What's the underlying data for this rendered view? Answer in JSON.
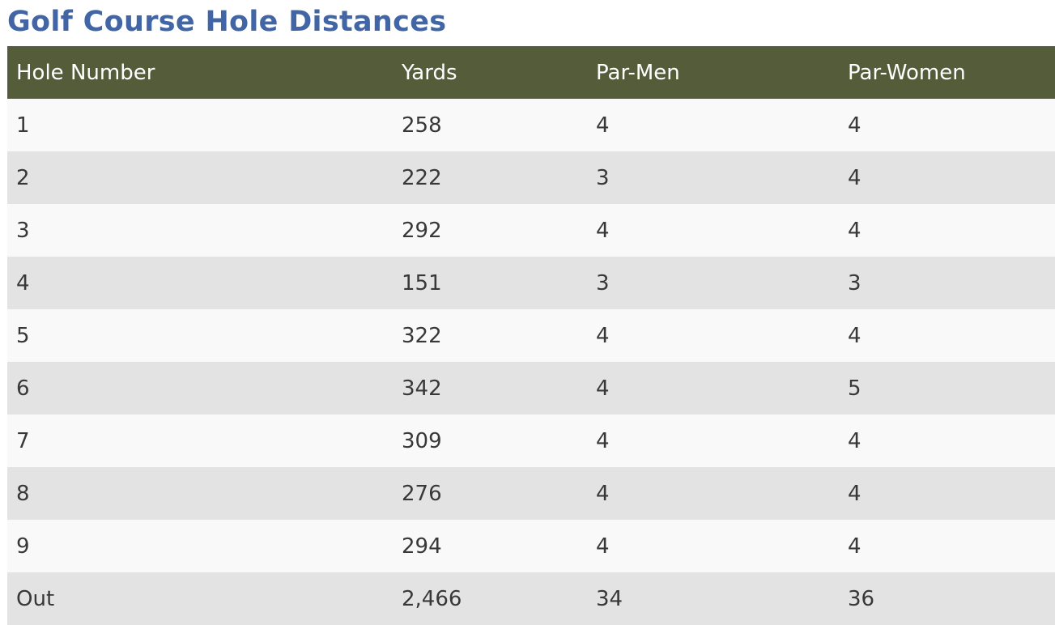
{
  "page": {
    "title": "Golf Course Hole Distances"
  },
  "colors": {
    "title": "#4266a5",
    "header_background": "#545c3a",
    "header_text": "#ffffff",
    "row_light": "#f9f9f9",
    "row_dark": "#e3e3e3",
    "cell_text": "#383838"
  },
  "table": {
    "headers": [
      "Hole Number",
      "Yards",
      "Par-Men",
      "Par-Women"
    ],
    "rows": [
      [
        "1",
        "258",
        "4",
        "4"
      ],
      [
        "2",
        "222",
        "3",
        "4"
      ],
      [
        "3",
        "292",
        "4",
        "4"
      ],
      [
        "4",
        "151",
        "3",
        "3"
      ],
      [
        "5",
        "322",
        "4",
        "4"
      ],
      [
        "6",
        "342",
        "4",
        "5"
      ],
      [
        "7",
        "309",
        "4",
        "4"
      ],
      [
        "8",
        "276",
        "4",
        "4"
      ],
      [
        "9",
        "294",
        "4",
        "4"
      ],
      [
        "Out",
        "2,466",
        "34",
        "36"
      ]
    ]
  }
}
